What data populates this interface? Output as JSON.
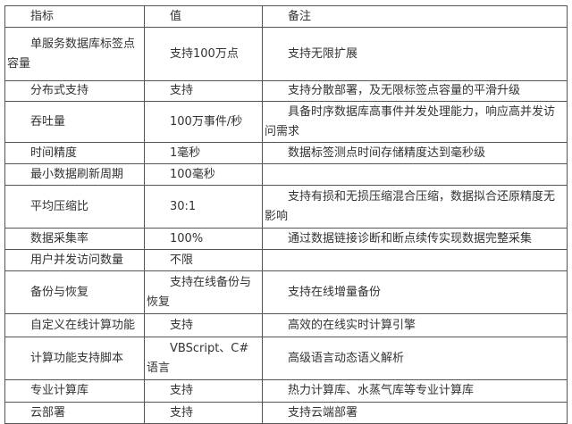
{
  "table": {
    "headers": [
      "指标",
      "值",
      "备注"
    ],
    "rows": [
      [
        "单服务数据库标签点容量",
        "支持100万点",
        "支持无限扩展"
      ],
      [
        "分布式支持",
        "支持",
        "支持分散部署，及无限标签点容量的平滑升级"
      ],
      [
        "吞吐量",
        "100万事件/秒",
        "具备时序数据库高事件并发处理能力，响应高并发访问需求"
      ],
      [
        "时间精度",
        "1毫秒",
        "数据标签测点时间存储精度达到毫秒级"
      ],
      [
        "最小数据刷新周期",
        "100毫秒",
        ""
      ],
      [
        "平均压缩比",
        "30:1",
        "支持有损和无损压缩混合压缩，数据拟合还原精度无影响"
      ],
      [
        "数据采集率",
        "100%",
        "通过数据链接诊断和断点续传实现数据完整采集"
      ],
      [
        "用户并发访问数量",
        "不限",
        ""
      ],
      [
        "备份与恢复",
        "支持在线备份与恢复",
        "支持在线增量备份"
      ],
      [
        "自定义在线计算功能",
        "支持",
        "高效的在线实时计算引擎"
      ],
      [
        "计算功能支持脚本",
        "VBScript、C#语言",
        "高级语言动态语义解析"
      ],
      [
        "专业计算库",
        "支持",
        "热力计算库、水蒸气库等专业计算库"
      ],
      [
        "云部署",
        "支持",
        "支持云端部署"
      ]
    ]
  }
}
